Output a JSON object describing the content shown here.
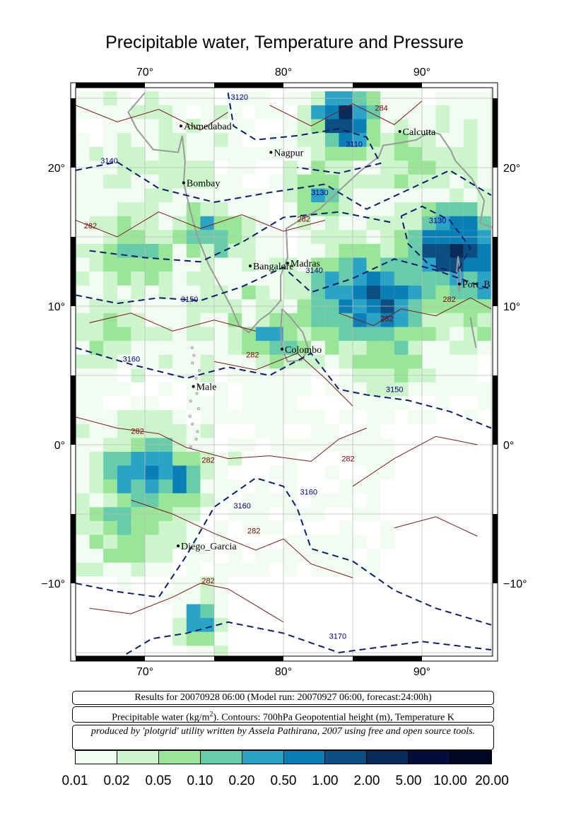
{
  "title": "Precipitable water, Temperature and Pressure",
  "map": {
    "lon_ticks": [
      "70°",
      "80°",
      "90°"
    ],
    "lat_ticks": [
      "20°",
      "10°",
      "0°",
      "−10°"
    ],
    "cities": [
      {
        "name": "Ahmedabad",
        "lon": 72.6,
        "lat": 23.0
      },
      {
        "name": "Nagpur",
        "lon": 79.1,
        "lat": 21.1
      },
      {
        "name": "Calcutta",
        "lon": 88.4,
        "lat": 22.6
      },
      {
        "name": "Bombay",
        "lon": 72.8,
        "lat": 18.9
      },
      {
        "name": "Bangalore",
        "lon": 77.6,
        "lat": 12.9
      },
      {
        "name": "Madras",
        "lon": 80.3,
        "lat": 13.1
      },
      {
        "name": "Port_B",
        "lon": 92.7,
        "lat": 11.6
      },
      {
        "name": "Colombo",
        "lon": 79.9,
        "lat": 6.9
      },
      {
        "name": "Male",
        "lon": 73.5,
        "lat": 4.2
      },
      {
        "name": "Diego_Garcia",
        "lon": 72.4,
        "lat": -7.3
      }
    ],
    "contour_labels": [
      {
        "text": "3120",
        "lon": 76.2,
        "lat": 24.9,
        "color": "#000080"
      },
      {
        "text": "3140",
        "lon": 66.8,
        "lat": 20.3,
        "color": "#000080"
      },
      {
        "text": "3130",
        "lon": 82.0,
        "lat": 18.0,
        "color": "#000080"
      },
      {
        "text": "3110",
        "lon": 84.5,
        "lat": 21.5,
        "color": "#000080"
      },
      {
        "text": "3130",
        "lon": 90.5,
        "lat": 16.0,
        "color": "#000080"
      },
      {
        "text": "3150",
        "lon": 72.6,
        "lat": 10.3,
        "color": "#000080"
      },
      {
        "text": "3160",
        "lon": 68.4,
        "lat": 6.0,
        "color": "#000080"
      },
      {
        "text": "3140",
        "lon": 81.6,
        "lat": 12.4,
        "color": "#000080"
      },
      {
        "text": "3150",
        "lon": 87.4,
        "lat": 3.8,
        "color": "#000080"
      },
      {
        "text": "3160",
        "lon": 76.4,
        "lat": -4.6,
        "color": "#000080"
      },
      {
        "text": "3160",
        "lon": 81.2,
        "lat": -3.6,
        "color": "#000080"
      },
      {
        "text": "3170",
        "lon": 83.3,
        "lat": -14.0,
        "color": "#000080"
      },
      {
        "text": "284",
        "lon": 86.6,
        "lat": 24.1,
        "color": "#800000"
      },
      {
        "text": "282",
        "lon": 65.6,
        "lat": 15.6,
        "color": "#800000"
      },
      {
        "text": "282",
        "lon": 81.0,
        "lat": 16.1,
        "color": "#800000"
      },
      {
        "text": "282",
        "lon": 87.0,
        "lat": 8.9,
        "color": "#800000"
      },
      {
        "text": "282",
        "lon": 91.5,
        "lat": 10.3,
        "color": "#800000"
      },
      {
        "text": "282",
        "lon": 77.3,
        "lat": 6.3,
        "color": "#800000"
      },
      {
        "text": "282",
        "lon": 69.0,
        "lat": 0.8,
        "color": "#800000"
      },
      {
        "text": "282",
        "lon": 74.1,
        "lat": -1.3,
        "color": "#800000"
      },
      {
        "text": "282",
        "lon": 84.2,
        "lat": -1.2,
        "color": "#800000"
      },
      {
        "text": "282",
        "lon": 77.4,
        "lat": -6.4,
        "color": "#800000"
      },
      {
        "text": "282",
        "lon": 74.1,
        "lat": -10.0,
        "color": "#800000"
      }
    ]
  },
  "info": {
    "results": "Results for 20070928 06:00 (Model run: 20070927 06:00, forecast:24:00h)",
    "legend_main": "Precipitable water (kg/m",
    "legend_sup": "2",
    "legend_rest": ").  Contours: 700hPa Geopotential height (m), Temperature K",
    "credit": "produced by 'plotgrid' utility written by Assela Pathirana, 2007 using free and open source tools."
  },
  "colorbar": {
    "colors": [
      "#f2fcf2",
      "#ccf5cc",
      "#99e699",
      "#66ccaa",
      "#2aa3c6",
      "#0a7fb5",
      "#0a4f80",
      "#082b5c",
      "#040d3a",
      "#020726"
    ],
    "labels": [
      "0.01",
      "0.02",
      "0.05",
      "0.10",
      "0.20",
      "0.50",
      "1.00",
      "2.00",
      "5.00",
      "10.00",
      "20.00"
    ]
  }
}
